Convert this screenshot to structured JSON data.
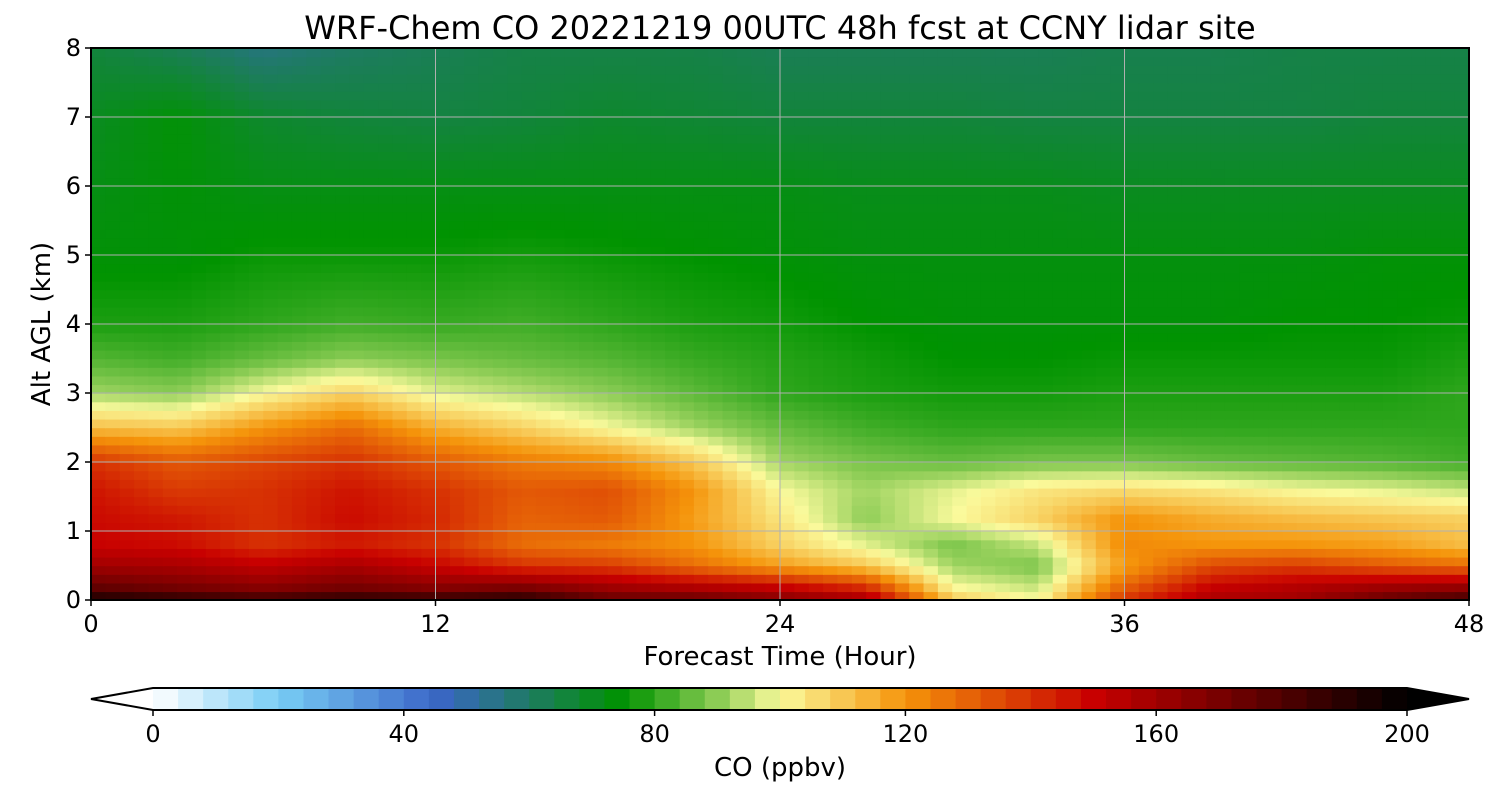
{
  "chart_data": {
    "type": "heatmap",
    "title": "WRF-Chem CO  20221219 00UTC 48h fcst at CCNY lidar site",
    "xlabel": "Forecast Time (Hour)",
    "ylabel": "Alt AGL (km)",
    "xlim": [
      0,
      48
    ],
    "ylim": [
      0,
      8
    ],
    "x_ticks": [
      0,
      12,
      24,
      36,
      48
    ],
    "y_ticks": [
      0,
      1,
      2,
      3,
      4,
      5,
      6,
      7,
      8
    ],
    "grid": true,
    "x": [
      0,
      3,
      6,
      9,
      12,
      15,
      18,
      21,
      24,
      27,
      30,
      33,
      36,
      39,
      42,
      45,
      48
    ],
    "y": [
      0,
      0.2,
      0.5,
      0.8,
      1.2,
      1.6,
      2.0,
      2.5,
      3.0,
      3.5,
      4.0,
      5.0,
      6.0,
      7.0,
      8.0
    ],
    "z": [
      [
        195,
        190,
        185,
        190,
        188,
        192,
        175,
        175,
        168,
        160,
        110,
        100,
        140,
        158,
        160,
        175,
        185
      ],
      [
        175,
        170,
        165,
        170,
        165,
        168,
        160,
        155,
        150,
        140,
        100,
        95,
        130,
        150,
        155,
        160,
        162
      ],
      [
        160,
        158,
        152,
        158,
        150,
        140,
        138,
        128,
        118,
        110,
        92,
        88,
        118,
        135,
        138,
        132,
        128
      ],
      [
        150,
        148,
        140,
        145,
        140,
        128,
        125,
        120,
        108,
        98,
        88,
        95,
        122,
        120,
        120,
        118,
        112
      ],
      [
        148,
        145,
        140,
        148,
        142,
        130,
        132,
        118,
        104,
        90,
        100,
        108,
        120,
        115,
        112,
        110,
        108
      ],
      [
        146,
        138,
        140,
        146,
        140,
        132,
        134,
        120,
        100,
        92,
        98,
        104,
        106,
        104,
        100,
        98,
        95
      ],
      [
        140,
        132,
        136,
        140,
        132,
        125,
        122,
        110,
        92,
        88,
        86,
        88,
        88,
        86,
        85,
        84,
        82
      ],
      [
        112,
        110,
        120,
        128,
        115,
        108,
        100,
        92,
        86,
        82,
        80,
        80,
        80,
        80,
        80,
        80,
        80
      ],
      [
        92,
        90,
        100,
        108,
        98,
        94,
        90,
        85,
        80,
        78,
        77,
        77,
        78,
        78,
        78,
        78,
        80
      ],
      [
        84,
        82,
        86,
        90,
        88,
        86,
        84,
        81,
        79,
        77,
        75,
        75,
        76,
        76,
        76,
        76,
        78
      ],
      [
        78,
        78,
        80,
        82,
        81,
        82,
        80,
        78,
        77,
        75,
        74,
        74,
        74,
        74,
        75,
        75,
        76
      ],
      [
        74,
        74,
        76,
        76,
        76,
        77,
        76,
        75,
        74,
        73,
        73,
        73,
        73,
        73,
        73,
        74,
        74
      ],
      [
        72,
        74,
        72,
        72,
        72,
        72,
        72,
        72,
        72,
        71,
        71,
        71,
        70,
        70,
        70,
        70,
        70
      ],
      [
        70,
        74,
        68,
        66,
        65,
        66,
        68,
        67,
        66,
        66,
        66,
        65,
        65,
        65,
        65,
        66,
        66
      ],
      [
        66,
        62,
        56,
        60,
        62,
        64,
        64,
        64,
        62,
        62,
        62,
        62,
        63,
        63,
        64,
        64,
        64
      ]
    ],
    "colorbar": {
      "label": "CO  (ppbv)",
      "range": [
        0,
        200
      ],
      "ticks": [
        0,
        40,
        80,
        120,
        160,
        200
      ],
      "extend": "both",
      "colors": [
        {
          "v": 0,
          "c": "#ffffff"
        },
        {
          "v": 20,
          "c": "#78cdf5"
        },
        {
          "v": 45,
          "c": "#3b66c8"
        },
        {
          "v": 60,
          "c": "#1e7b62"
        },
        {
          "v": 75,
          "c": "#009300"
        },
        {
          "v": 90,
          "c": "#8ccc55"
        },
        {
          "v": 100,
          "c": "#fafa9c"
        },
        {
          "v": 120,
          "c": "#f5940a"
        },
        {
          "v": 150,
          "c": "#c80000"
        },
        {
          "v": 180,
          "c": "#500000"
        },
        {
          "v": 200,
          "c": "#000000"
        }
      ]
    }
  }
}
